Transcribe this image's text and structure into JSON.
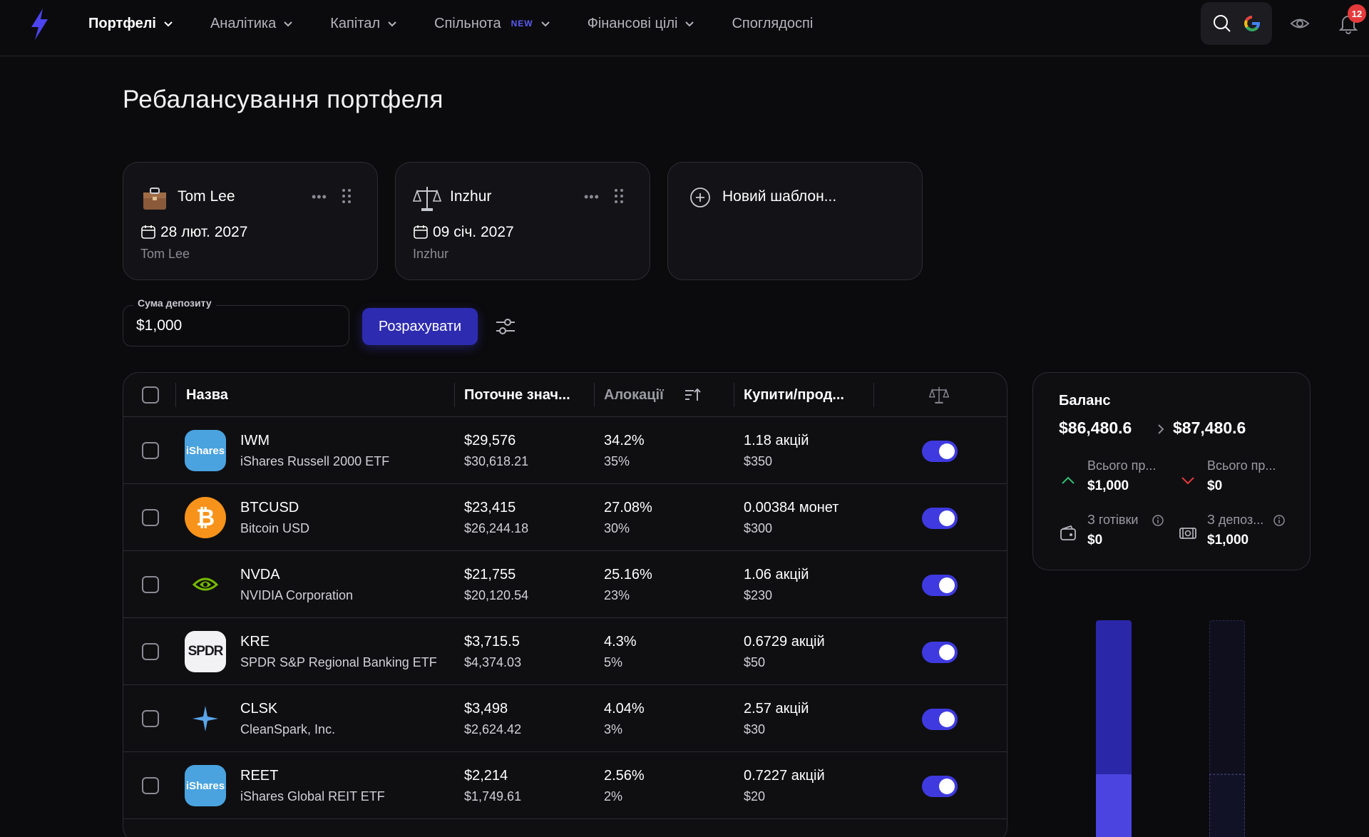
{
  "nav": {
    "items": [
      {
        "label": "Портфелі",
        "active": true
      },
      {
        "label": "Аналітика",
        "active": false
      },
      {
        "label": "Капітал",
        "active": false
      },
      {
        "label": "Спільнота",
        "active": false,
        "badge": "NEW"
      },
      {
        "label": "Фінансові цілі",
        "active": false
      }
    ],
    "cut_item": "Споглядоспі",
    "notifications": "12",
    "icons": [
      "lightning-logo-icon",
      "search-icon",
      "google-icon",
      "eye-icon",
      "bell-icon"
    ]
  },
  "page": {
    "title": "Ребалансування портфеля"
  },
  "templates": [
    {
      "name": "Tom Lee",
      "date": "28 лют. 2027",
      "sub": "Tom Lee",
      "icon": "briefcase-icon"
    },
    {
      "name": "Inzhur",
      "date": "09 січ. 2027",
      "sub": "Inzhur",
      "icon": "scales-icon"
    },
    {
      "name": "Новий шаблон...",
      "icon": "plus-circle-icon"
    }
  ],
  "deposit": {
    "label": "Сума депозиту",
    "value": "$1,000",
    "button": "Розрахувати"
  },
  "table": {
    "headers": {
      "name": "Назва",
      "current": "Поточне знач...",
      "alloc": "Алокації",
      "trade": "Купити/прод..."
    },
    "rows": [
      {
        "ticker": "IWM",
        "name": "iShares Russell 2000 ETF",
        "cur": "$29,576",
        "target": "$30,618.21",
        "alloc": "34.2%",
        "alloc_target": "35%",
        "trade": "1.18 акцій",
        "trade_val": "$350",
        "logo": "iShares",
        "enabled": true
      },
      {
        "ticker": "BTCUSD",
        "name": "Bitcoin USD",
        "cur": "$23,415",
        "target": "$26,244.18",
        "alloc": "27.08%",
        "alloc_target": "30%",
        "trade": "0.00384 монет",
        "trade_val": "$300",
        "logo": "₿",
        "enabled": true
      },
      {
        "ticker": "NVDA",
        "name": "NVIDIA Corporation",
        "cur": "$21,755",
        "target": "$20,120.54",
        "alloc": "25.16%",
        "alloc_target": "23%",
        "trade": "1.06 акцій",
        "trade_val": "$230",
        "logo": "nvidia-eye-icon",
        "enabled": true
      },
      {
        "ticker": "KRE",
        "name": "SPDR S&P Regional Banking ETF",
        "cur": "$3,715.5",
        "target": "$4,374.03",
        "alloc": "4.3%",
        "alloc_target": "5%",
        "trade": "0.6729 акцій",
        "trade_val": "$50",
        "logo": "SPDR",
        "enabled": true
      },
      {
        "ticker": "CLSK",
        "name": "CleanSpark, Inc.",
        "cur": "$3,498",
        "target": "$2,624.42",
        "alloc": "4.04%",
        "alloc_target": "3%",
        "trade": "2.57 акцій",
        "trade_val": "$30",
        "logo": "star-icon",
        "enabled": true
      },
      {
        "ticker": "REET",
        "name": "iShares Global REIT ETF",
        "cur": "$2,214",
        "target": "$1,749.61",
        "alloc": "2.56%",
        "alloc_target": "2%",
        "trade": "0.7227 акцій",
        "trade_val": "$20",
        "logo": "iShares",
        "enabled": true
      }
    ]
  },
  "balance": {
    "title": "Баланс",
    "from": "$86,480.6",
    "to": "$87,480.6",
    "buy_label": "Всього пр...",
    "buy_value": "$1,000",
    "sell_label": "Всього пр...",
    "sell_value": "$0",
    "cash_label": "З готівки",
    "cash_value": "$0",
    "deposit_label": "З депоз...",
    "deposit_value": "$1,000"
  },
  "colors": {
    "accent": "#3f3ae0",
    "bg": "#0b0b0d",
    "up": "#2fbf71",
    "down": "#e5393b"
  }
}
